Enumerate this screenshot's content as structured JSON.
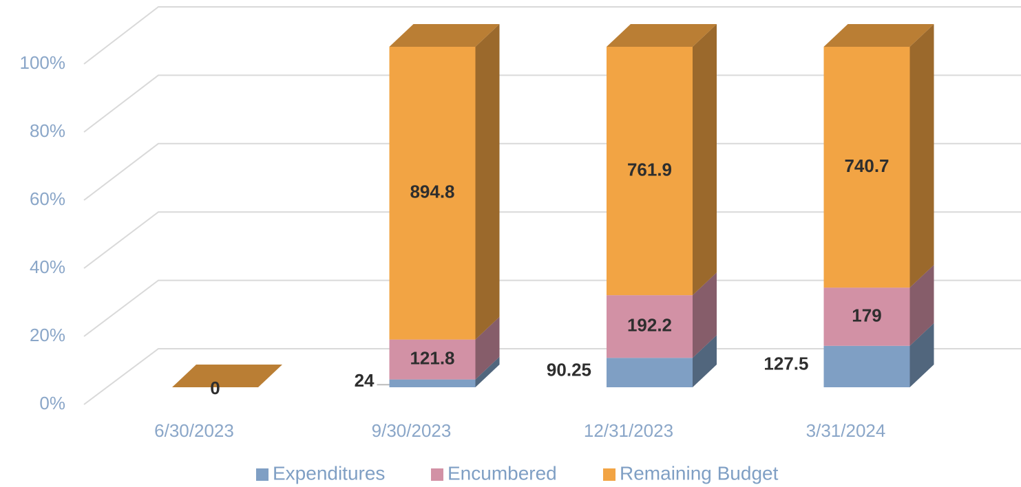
{
  "chart_data": {
    "type": "bar3d_stacked_percent",
    "categories": [
      "6/30/2023",
      "9/30/2023",
      "12/31/2023",
      "3/31/2024"
    ],
    "series": [
      {
        "name": "Expenditures",
        "color": "#7f9fc4",
        "values": [
          0,
          24,
          90.25,
          127.5
        ]
      },
      {
        "name": "Encumbered",
        "color": "#d291a5",
        "values": [
          0,
          121.8,
          192.2,
          179
        ]
      },
      {
        "name": "Remaining Budget",
        "color": "#f2a444",
        "values": [
          0,
          894.8,
          761.9,
          740.7
        ]
      }
    ],
    "ylim": [
      0,
      100
    ],
    "yticks": [
      {
        "value": 0,
        "label": "0%"
      },
      {
        "value": 20,
        "label": "20%"
      },
      {
        "value": 40,
        "label": "40%"
      },
      {
        "value": 60,
        "label": "60%"
      },
      {
        "value": 80,
        "label": "80%"
      },
      {
        "value": 100,
        "label": "100%"
      }
    ],
    "grid": true,
    "legend": "bottom"
  }
}
